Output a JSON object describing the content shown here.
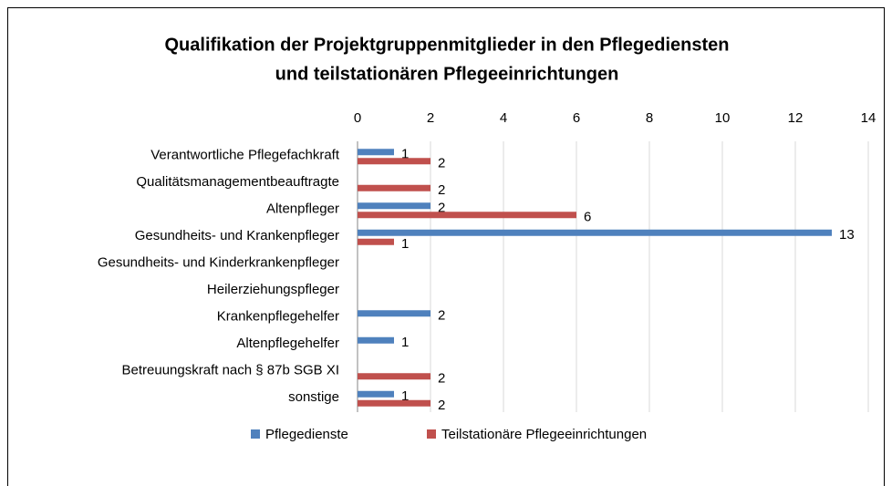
{
  "chart_data": {
    "type": "bar",
    "orientation": "horizontal",
    "title": [
      "Qualifikation der Projektgruppenmitglieder in den Pflegediensten",
      "und teilstationären Pflegeeinrichtungen"
    ],
    "categories": [
      "Verantwortliche Pflegefachkraft",
      "Qualitätsmanagementbeauftragte",
      "Altenpfleger",
      "Gesundheits- und Krankenpfleger",
      "Gesundheits- und Kinderkrankenpfleger",
      "Heilerziehungspfleger",
      "Krankenpflegehelfer",
      "Altenpflegehelfer",
      "Betreuungskraft nach § 87b SGB XI",
      "sonstige"
    ],
    "series": [
      {
        "name": "Pflegedienste",
        "color": "#4f81bd",
        "values": [
          1,
          null,
          2,
          13,
          null,
          null,
          2,
          1,
          null,
          1
        ]
      },
      {
        "name": "Teilstationäre Pflegeeinrichtungen",
        "color": "#c0504d",
        "values": [
          2,
          2,
          6,
          1,
          null,
          null,
          null,
          null,
          2,
          2
        ]
      }
    ],
    "xlim": [
      0,
      14
    ],
    "xticks": [
      0,
      2,
      4,
      6,
      8,
      10,
      12,
      14
    ],
    "grid": true,
    "legend": "bottom"
  }
}
